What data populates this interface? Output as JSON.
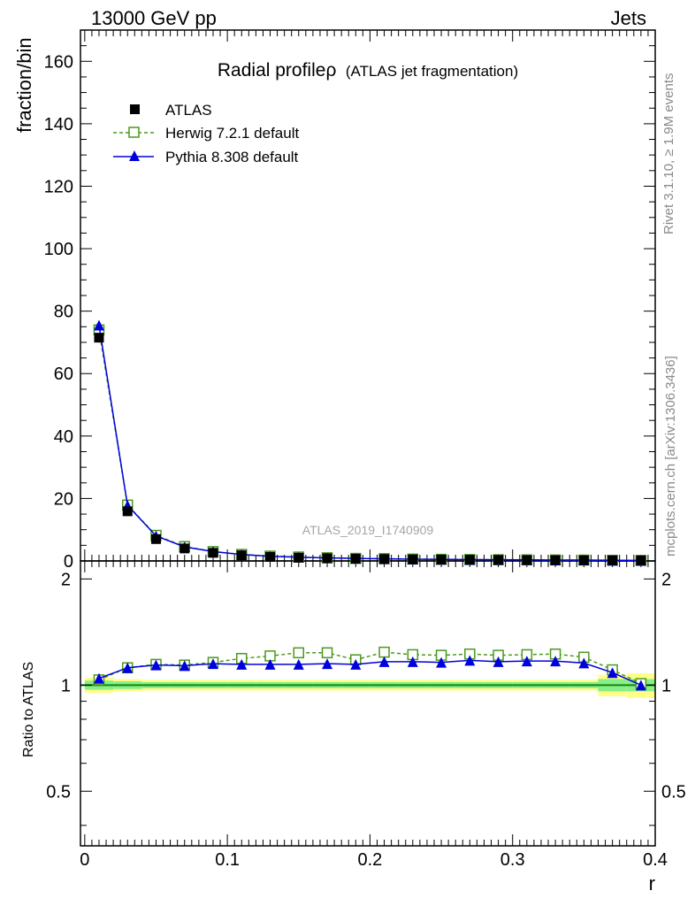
{
  "header": {
    "left": "13000 GeV pp",
    "right": "Jets"
  },
  "side": {
    "rivet": "Rivet 3.1.10, ≥ 1.9M events",
    "mcplots": "mcplots.cern.ch [arXiv:1306.3436]"
  },
  "watermark": "ATLAS_2019_I1740909",
  "chart_data": {
    "type": "line",
    "title": "Radial profileρ",
    "subtitle": "(ATLAS jet fragmentation)",
    "xlabel": "r",
    "ylabel": "fraction/bin",
    "ratio_ylabel": "Ratio to ATLAS",
    "xlim": [
      -0.003,
      0.4
    ],
    "ylim": [
      0,
      170
    ],
    "ratio_ylim": [
      0.35,
      2.25
    ],
    "x_ticks": [
      "0",
      "0.1",
      "0.2",
      "0.3",
      "0.4"
    ],
    "x_tick_values": [
      0,
      0.1,
      0.2,
      0.3,
      0.4
    ],
    "y_ticks": [
      "0",
      "20",
      "40",
      "60",
      "80",
      "100",
      "120",
      "140",
      "160"
    ],
    "y_tick_values": [
      0,
      20,
      40,
      60,
      80,
      100,
      120,
      140,
      160
    ],
    "ratio_ticks": [
      "0.5",
      "1",
      "2"
    ],
    "ratio_tick_values": [
      0.5,
      1,
      2
    ],
    "x": [
      0.01,
      0.03,
      0.05,
      0.07,
      0.09,
      0.11,
      0.13,
      0.15,
      0.17,
      0.19,
      0.21,
      0.23,
      0.25,
      0.27,
      0.29,
      0.31,
      0.33,
      0.35,
      0.37,
      0.39
    ],
    "bin_edges": [
      0,
      0.02,
      0.04,
      0.06,
      0.08,
      0.1,
      0.12,
      0.14,
      0.16,
      0.18,
      0.2,
      0.22,
      0.24,
      0.26,
      0.28,
      0.3,
      0.32,
      0.34,
      0.36,
      0.38,
      0.4
    ],
    "series": [
      {
        "name": "ATLAS",
        "color": "#000000",
        "marker": "filled-square",
        "values": [
          71.5,
          15.9,
          7.0,
          4.0,
          2.6,
          1.8,
          1.3,
          1.05,
          0.85,
          0.7,
          0.6,
          0.5,
          0.43,
          0.38,
          0.33,
          0.29,
          0.26,
          0.23,
          0.2,
          0.18
        ]
      },
      {
        "name": "Herwig 7.2.1 default",
        "color": "#4a9a1c",
        "marker": "open-square",
        "dashed": true,
        "values": [
          74.0,
          17.9,
          8.2,
          4.6,
          3.0,
          2.1,
          1.55,
          1.27,
          1.03,
          0.83,
          0.74,
          0.61,
          0.52,
          0.46,
          0.4,
          0.35,
          0.32,
          0.28,
          0.22,
          0.18
        ],
        "ratio": [
          1.035,
          1.12,
          1.145,
          1.14,
          1.16,
          1.19,
          1.21,
          1.235,
          1.235,
          1.18,
          1.24,
          1.22,
          1.215,
          1.225,
          1.215,
          1.22,
          1.225,
          1.2,
          1.105,
          1.01
        ]
      },
      {
        "name": "Pythia 8.308 default",
        "color": "#0000dd",
        "marker": "filled-triangle",
        "dashed": false,
        "values": [
          75.5,
          17.8,
          8.0,
          4.5,
          3.0,
          2.06,
          1.48,
          1.2,
          0.97,
          0.8,
          0.69,
          0.58,
          0.5,
          0.44,
          0.38,
          0.34,
          0.3,
          0.27,
          0.22,
          0.18
        ],
        "ratio": [
          1.045,
          1.12,
          1.14,
          1.135,
          1.15,
          1.145,
          1.145,
          1.145,
          1.15,
          1.145,
          1.165,
          1.165,
          1.16,
          1.175,
          1.165,
          1.17,
          1.17,
          1.155,
          1.085,
          1.0
        ]
      }
    ],
    "band_inner": [
      0.03,
      0.025,
      0.02,
      0.02,
      0.02,
      0.02,
      0.02,
      0.02,
      0.02,
      0.02,
      0.02,
      0.02,
      0.02,
      0.02,
      0.02,
      0.02,
      0.02,
      0.02,
      0.04,
      0.04
    ],
    "band_outer": [
      0.05,
      0.04,
      0.035,
      0.035,
      0.035,
      0.035,
      0.035,
      0.035,
      0.035,
      0.035,
      0.035,
      0.035,
      0.035,
      0.035,
      0.035,
      0.035,
      0.035,
      0.035,
      0.07,
      0.08
    ],
    "band_colors": {
      "outer": "#ffff88",
      "inner": "#88ee88",
      "reference": "#118811"
    }
  }
}
